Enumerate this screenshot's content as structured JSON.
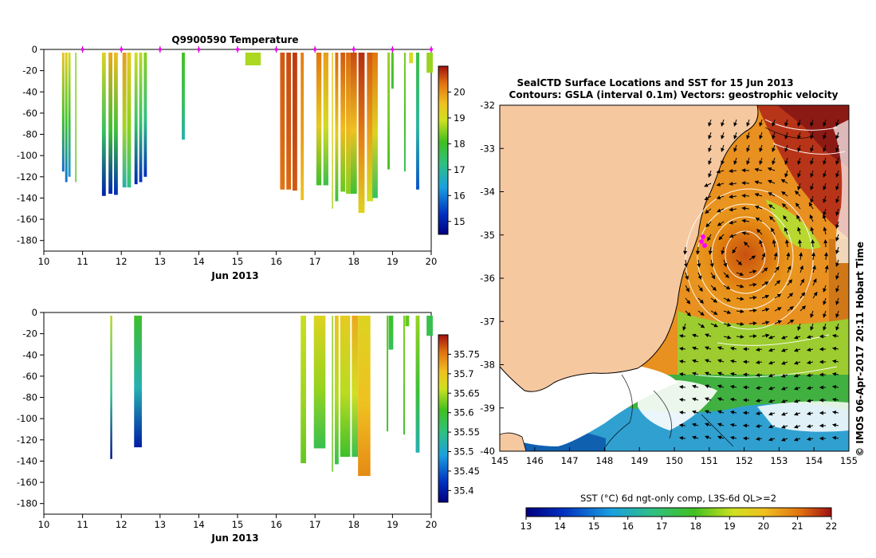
{
  "chart_data": [
    {
      "id": "temperature",
      "type": "heatmap",
      "title": "Q9900590  Temperature",
      "xlabel": "Jun 2013",
      "ylabel": "",
      "xlim": [
        10,
        20
      ],
      "ylim": [
        -190,
        0
      ],
      "xticks": [
        "10",
        "11",
        "12",
        "13",
        "14",
        "15",
        "16",
        "17",
        "18",
        "19",
        "20"
      ],
      "yticks": [
        "0",
        "-20",
        "-40",
        "-60",
        "-80",
        "-100",
        "-120",
        "-140",
        "-160",
        "-180"
      ],
      "colorbar": {
        "min": 14.5,
        "max": 21,
        "ticks": [
          "15",
          "16",
          "17",
          "18",
          "19",
          "20"
        ]
      },
      "surface_markers": [
        11,
        12,
        13,
        14,
        15,
        16,
        17,
        18,
        19,
        20
      ],
      "profiles": [
        {
          "x": 10.5,
          "w": 0.06,
          "d": 115,
          "cat": 19.5,
          "cbot": 15.8
        },
        {
          "x": 10.58,
          "w": 0.06,
          "d": 125,
          "cat": 19.3,
          "cbot": 15.9
        },
        {
          "x": 10.66,
          "w": 0.06,
          "d": 120,
          "cat": 19.0,
          "cbot": 16.2
        },
        {
          "x": 10.82,
          "w": 0.02,
          "d": 125,
          "cat": 18.5,
          "cbot": 18.2
        },
        {
          "x": 11.55,
          "w": 0.1,
          "d": 138,
          "cat": 19.2,
          "cbot": 15.0
        },
        {
          "x": 11.72,
          "w": 0.1,
          "d": 136,
          "cat": 19.8,
          "cbot": 15.1
        },
        {
          "x": 11.86,
          "w": 0.1,
          "d": 137,
          "cat": 19.6,
          "cbot": 15.2
        },
        {
          "x": 12.08,
          "w": 0.1,
          "d": 130,
          "cat": 19.9,
          "cbot": 16.8
        },
        {
          "x": 12.2,
          "w": 0.1,
          "d": 130,
          "cat": 19.4,
          "cbot": 17.2
        },
        {
          "x": 12.38,
          "w": 0.08,
          "d": 127,
          "cat": 19.0,
          "cbot": 15.1
        },
        {
          "x": 12.5,
          "w": 0.08,
          "d": 125,
          "cat": 18.8,
          "cbot": 15.3
        },
        {
          "x": 12.62,
          "w": 0.08,
          "d": 120,
          "cat": 18.5,
          "cbot": 15.2
        },
        {
          "x": 13.6,
          "w": 0.08,
          "d": 85,
          "cat": 18.1,
          "cbot": 16.8
        },
        {
          "x": 15.4,
          "w": 0.4,
          "d": 15,
          "cat": 18.7,
          "cbot": 18.7
        },
        {
          "x": 16.16,
          "w": 0.12,
          "d": 132,
          "cat": 20.5,
          "cbot": 20.3
        },
        {
          "x": 16.32,
          "w": 0.12,
          "d": 132,
          "cat": 20.6,
          "cbot": 20.4
        },
        {
          "x": 16.48,
          "w": 0.12,
          "d": 133,
          "cat": 20.7,
          "cbot": 20.5
        },
        {
          "x": 16.67,
          "w": 0.08,
          "d": 142,
          "cat": 20.2,
          "cbot": 19.5
        },
        {
          "x": 17.1,
          "w": 0.13,
          "d": 128,
          "cat": 20.3,
          "cbot": 18.0
        },
        {
          "x": 17.28,
          "w": 0.13,
          "d": 128,
          "cat": 19.9,
          "cbot": 17.7
        },
        {
          "x": 17.45,
          "w": 0.03,
          "d": 150,
          "cat": 19.5,
          "cbot": 18.7
        },
        {
          "x": 17.56,
          "w": 0.08,
          "d": 143,
          "cat": 20.4,
          "cbot": 17.8
        },
        {
          "x": 17.72,
          "w": 0.12,
          "d": 134,
          "cat": 20.5,
          "cbot": 18.3
        },
        {
          "x": 17.86,
          "w": 0.12,
          "d": 136,
          "cat": 20.4,
          "cbot": 18.5
        },
        {
          "x": 18.0,
          "w": 0.16,
          "d": 136,
          "cat": 20.6,
          "cbot": 17.9
        },
        {
          "x": 18.2,
          "w": 0.16,
          "d": 154,
          "cat": 20.8,
          "cbot": 19.2
        },
        {
          "x": 18.42,
          "w": 0.16,
          "d": 143,
          "cat": 20.5,
          "cbot": 18.9
        },
        {
          "x": 18.55,
          "w": 0.14,
          "d": 140,
          "cat": 20.3,
          "cbot": 17.5
        },
        {
          "x": 18.9,
          "w": 0.06,
          "d": 113,
          "cat": 18.6,
          "cbot": 18.1
        },
        {
          "x": 19.0,
          "w": 0.06,
          "d": 37,
          "cat": 18.2,
          "cbot": 17.8
        },
        {
          "x": 19.32,
          "w": 0.04,
          "d": 115,
          "cat": 18.4,
          "cbot": 17.6
        },
        {
          "x": 19.48,
          "w": 0.1,
          "d": 13,
          "cat": 19.0,
          "cbot": 19.0
        },
        {
          "x": 19.65,
          "w": 0.08,
          "d": 132,
          "cat": 17.8,
          "cbot": 15.6
        },
        {
          "x": 19.96,
          "w": 0.16,
          "d": 22,
          "cat": 18.6,
          "cbot": 18.6
        }
      ]
    },
    {
      "id": "salinity",
      "type": "heatmap",
      "title": "",
      "xlabel": "Jun 2013",
      "ylabel": "",
      "xlim": [
        10,
        20
      ],
      "ylim": [
        -190,
        0
      ],
      "xticks": [
        "10",
        "11",
        "12",
        "13",
        "14",
        "15",
        "16",
        "17",
        "18",
        "19",
        "20"
      ],
      "yticks": [
        "0",
        "-20",
        "-40",
        "-60",
        "-80",
        "-100",
        "-120",
        "-140",
        "-160",
        "-180"
      ],
      "colorbar": {
        "min": 35.37,
        "max": 35.8,
        "ticks": [
          "35.4",
          "35.45",
          "35.5",
          "35.55",
          "35.6",
          "35.65",
          "35.7",
          "35.75"
        ]
      },
      "profiles": [
        {
          "x": 11.74,
          "w": 0.05,
          "d": 138,
          "cat": 35.65,
          "cbot": 35.38
        },
        {
          "x": 12.43,
          "w": 0.2,
          "d": 127,
          "cat": 35.6,
          "cbot": 35.4
        },
        {
          "x": 16.7,
          "w": 0.14,
          "d": 142,
          "cat": 35.66,
          "cbot": 35.62
        },
        {
          "x": 17.12,
          "w": 0.3,
          "d": 128,
          "cat": 35.68,
          "cbot": 35.58
        },
        {
          "x": 17.45,
          "w": 0.03,
          "d": 150,
          "cat": 35.64,
          "cbot": 35.62
        },
        {
          "x": 17.56,
          "w": 0.1,
          "d": 143,
          "cat": 35.7,
          "cbot": 35.58
        },
        {
          "x": 17.78,
          "w": 0.26,
          "d": 136,
          "cat": 35.69,
          "cbot": 35.6
        },
        {
          "x": 18.03,
          "w": 0.16,
          "d": 136,
          "cat": 35.72,
          "cbot": 35.58
        },
        {
          "x": 18.27,
          "w": 0.32,
          "d": 154,
          "cat": 35.68,
          "cbot": 35.74
        },
        {
          "x": 18.87,
          "w": 0.04,
          "d": 112,
          "cat": 35.62,
          "cbot": 35.6
        },
        {
          "x": 18.96,
          "w": 0.12,
          "d": 35,
          "cat": 35.6,
          "cbot": 35.57
        },
        {
          "x": 19.3,
          "w": 0.04,
          "d": 115,
          "cat": 35.63,
          "cbot": 35.6
        },
        {
          "x": 19.38,
          "w": 0.1,
          "d": 13,
          "cat": 35.62,
          "cbot": 35.62
        },
        {
          "x": 19.65,
          "w": 0.1,
          "d": 132,
          "cat": 35.64,
          "cbot": 35.52
        },
        {
          "x": 19.96,
          "w": 0.16,
          "d": 22,
          "cat": 35.58,
          "cbot": 35.58
        }
      ]
    },
    {
      "id": "sst_map",
      "type": "heatmap",
      "title": "SealCTD Surface Locations and SST for 15 Jun 2013",
      "subtitle": "Contours: GSLA (interval 0.1m) Vectors: geostrophic velocity",
      "xlim": [
        145,
        155
      ],
      "ylim": [
        -40,
        -32
      ],
      "xticks": [
        "145",
        "146",
        "147",
        "148",
        "149",
        "150",
        "151",
        "152",
        "153",
        "154",
        "155"
      ],
      "yticks": [
        "-32",
        "-33",
        "-34",
        "-35",
        "-36",
        "-37",
        "-38",
        "-39",
        "-40"
      ],
      "colorbar": {
        "label": "SST (°C) 6d ngt-only comp, L3S-6d QL>=2",
        "min": 13,
        "max": 22,
        "ticks": [
          "13",
          "14",
          "15",
          "16",
          "17",
          "18",
          "19",
          "20",
          "21",
          "22"
        ]
      },
      "credit": "© IMOS 06-Apr-2017 20:11 Hobart Time",
      "eddy_center": [
        152,
        -35.4
      ],
      "ctd_locations": [
        [
          150.85,
          -34.95
        ],
        [
          150.8,
          -35.05
        ],
        [
          150.9,
          -35.15
        ]
      ],
      "colors": {
        "land": "#f6c8a0",
        "ctd_marker": "#ff00ff"
      }
    }
  ]
}
